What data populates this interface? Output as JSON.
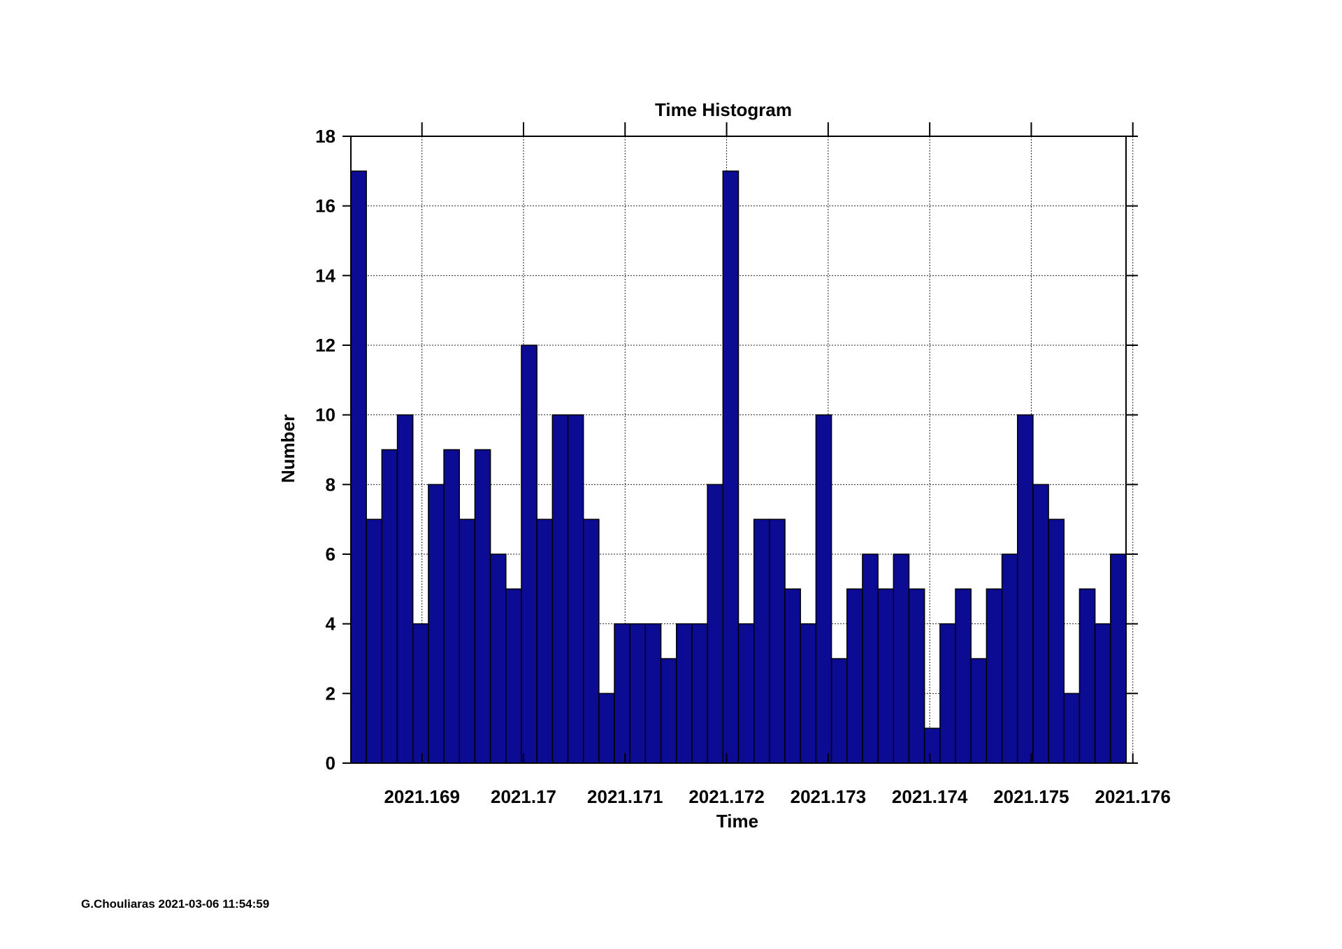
{
  "chart_data": {
    "type": "bar",
    "title": "Time Histogram",
    "xlabel": "Time",
    "ylabel": "Number",
    "ylim": [
      0,
      18
    ],
    "xlim": [
      2021.1683,
      2021.17605
    ],
    "yticks": [
      0,
      2,
      4,
      6,
      8,
      10,
      12,
      14,
      16,
      18
    ],
    "xticks": [
      "2021.169",
      "2021.17",
      "2021.171",
      "2021.172",
      "2021.173",
      "2021.174",
      "2021.175",
      "2021.176"
    ],
    "xtick_values": [
      2021.169,
      2021.17,
      2021.171,
      2021.172,
      2021.173,
      2021.174,
      2021.175,
      2021.176
    ],
    "grid": true,
    "bar_color": "#0b0b94",
    "values": [
      17,
      7,
      9,
      10,
      4,
      8,
      9,
      7,
      9,
      6,
      5,
      12,
      7,
      10,
      10,
      7,
      2,
      4,
      4,
      4,
      3,
      4,
      4,
      8,
      17,
      4,
      7,
      7,
      5,
      4,
      10,
      3,
      5,
      6,
      5,
      6,
      5,
      1,
      4,
      5,
      3,
      5,
      6,
      10,
      8,
      7,
      2,
      5,
      4,
      6
    ]
  },
  "footer": "G.Chouliaras 2021-03-06 11:54:59"
}
